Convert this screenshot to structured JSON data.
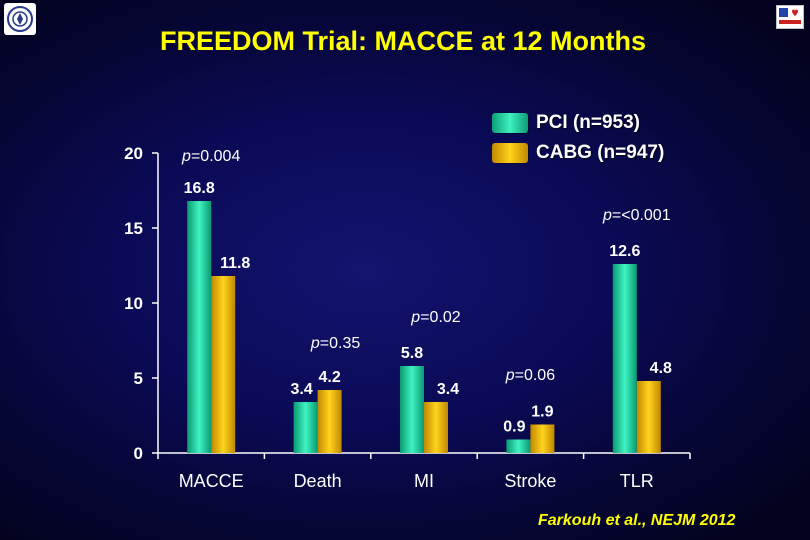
{
  "logos": {
    "left": "institution-seal",
    "right": "heart-logo"
  },
  "title": "FREEDOM Trial: MACCE at 12 Months",
  "citation": "Farkouh et al., NEJM 2012",
  "colors": {
    "background": "#0a0a55",
    "title": "#ffff00",
    "pci": "#1fd6a0",
    "cabg": "#f0b800",
    "text": "#ffffff"
  },
  "chart_data": {
    "type": "bar",
    "categories": [
      "MACCE",
      "Death",
      "MI",
      "Stroke",
      "TLR"
    ],
    "series": [
      {
        "name": "PCI (n=953)",
        "values": [
          16.8,
          3.4,
          5.8,
          0.9,
          12.6
        ],
        "labels": [
          "16.8",
          "3.4",
          "5.8",
          "0.9",
          "12.6"
        ]
      },
      {
        "name": "CABG (n=947)",
        "values": [
          11.8,
          4.2,
          3.4,
          1.9,
          4.8
        ],
        "labels": [
          "11.8",
          "4.2",
          "3.4",
          "1.9",
          "4.8"
        ]
      }
    ],
    "p_values": [
      "p=0.004",
      "p=0.35",
      "p=0.02",
      "p=0.06",
      "p=<0.001"
    ],
    "yticks": [
      "0",
      "5",
      "10",
      "15",
      "20"
    ],
    "ylim": [
      0,
      20
    ],
    "grid": false,
    "legend_position": "top-right",
    "title": "FREEDOM Trial: MACCE at 12 Months",
    "xlabel": "",
    "ylabel": ""
  }
}
